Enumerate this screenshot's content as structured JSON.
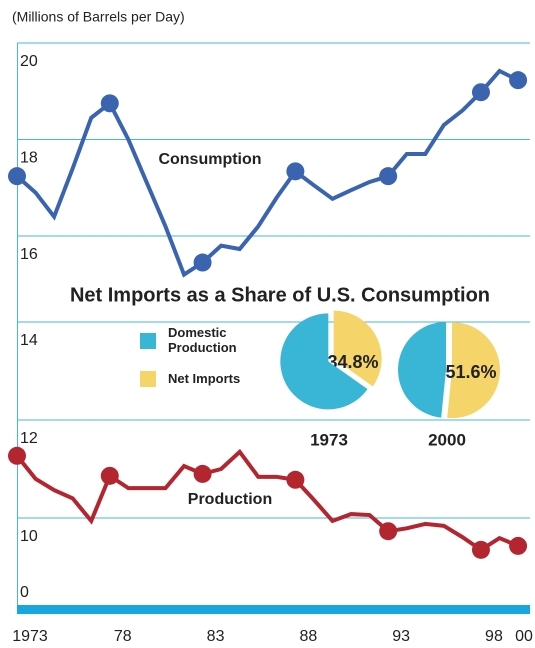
{
  "subtitle": "(Millions of Barrels per Day)",
  "chart_data": [
    {
      "type": "line",
      "label": "Consumption",
      "color": "#3a64b0",
      "x": [
        1973,
        1974,
        1975,
        1976,
        1977,
        1978,
        1979,
        1980,
        1981,
        1982,
        1983,
        1984,
        1985,
        1986,
        1987,
        1988,
        1989,
        1990,
        1991,
        1992,
        1993,
        1994,
        1995,
        1996,
        1997,
        1998,
        1999,
        2000
      ],
      "values": [
        17.24,
        16.9,
        16.4,
        17.4,
        18.45,
        18.75,
        18.0,
        17.1,
        16.2,
        15.2,
        15.45,
        15.8,
        15.73,
        16.2,
        16.8,
        17.34,
        17.05,
        16.77,
        16.95,
        17.12,
        17.24,
        17.7,
        17.7,
        18.3,
        18.6,
        18.98,
        19.42,
        19.23
      ],
      "xlim": [
        1973,
        2000.4
      ],
      "ylim": [
        16,
        20
      ],
      "yticks": [
        16,
        18,
        20
      ],
      "grid": true
    },
    {
      "type": "line",
      "label": "Production",
      "color": "#b32630",
      "x": [
        1973,
        1974,
        1975,
        1976,
        1977,
        1978,
        1979,
        1980,
        1981,
        1982,
        1983,
        1984,
        1985,
        1986,
        1987,
        1988,
        1989,
        1990,
        1991,
        1992,
        1993,
        1994,
        1995,
        1996,
        1997,
        1998,
        1999,
        2000
      ],
      "values": [
        11.27,
        10.8,
        10.57,
        10.4,
        9.94,
        10.86,
        10.61,
        10.61,
        10.61,
        11.06,
        10.9,
        11.0,
        11.35,
        10.84,
        10.84,
        10.78,
        10.37,
        9.94,
        10.08,
        10.06,
        9.73,
        9.79,
        9.88,
        9.84,
        9.61,
        9.35,
        9.59,
        9.43
      ],
      "xlim": [
        1973,
        2000.4
      ],
      "ylim": [
        10,
        14
      ],
      "yticks": [
        10,
        12,
        14
      ],
      "baseline_tick": 0,
      "grid": true,
      "xticks": [
        {
          "value": 1973,
          "label": "1973"
        },
        {
          "value": 1978,
          "label": "78"
        },
        {
          "value": 1983,
          "label": "83"
        },
        {
          "value": 1988,
          "label": "88"
        },
        {
          "value": 1993,
          "label": "93"
        },
        {
          "value": 1998,
          "label": "98"
        },
        {
          "value": 2000,
          "label": "00"
        }
      ]
    },
    {
      "type": "pie",
      "title": "Net Imports as a Share of U.S. Consumption",
      "categories": [
        "Domestic Production",
        "Net Imports"
      ],
      "colors": [
        "#39b6d6",
        "#f5d46a"
      ],
      "pies": [
        {
          "name": "1973",
          "values": [
            65.2,
            34.8
          ],
          "value_labels": [
            null,
            "34.8%"
          ]
        },
        {
          "name": "2000",
          "values": [
            48.4,
            51.6
          ],
          "value_labels": [
            null,
            "51.6%"
          ]
        }
      ]
    }
  ]
}
